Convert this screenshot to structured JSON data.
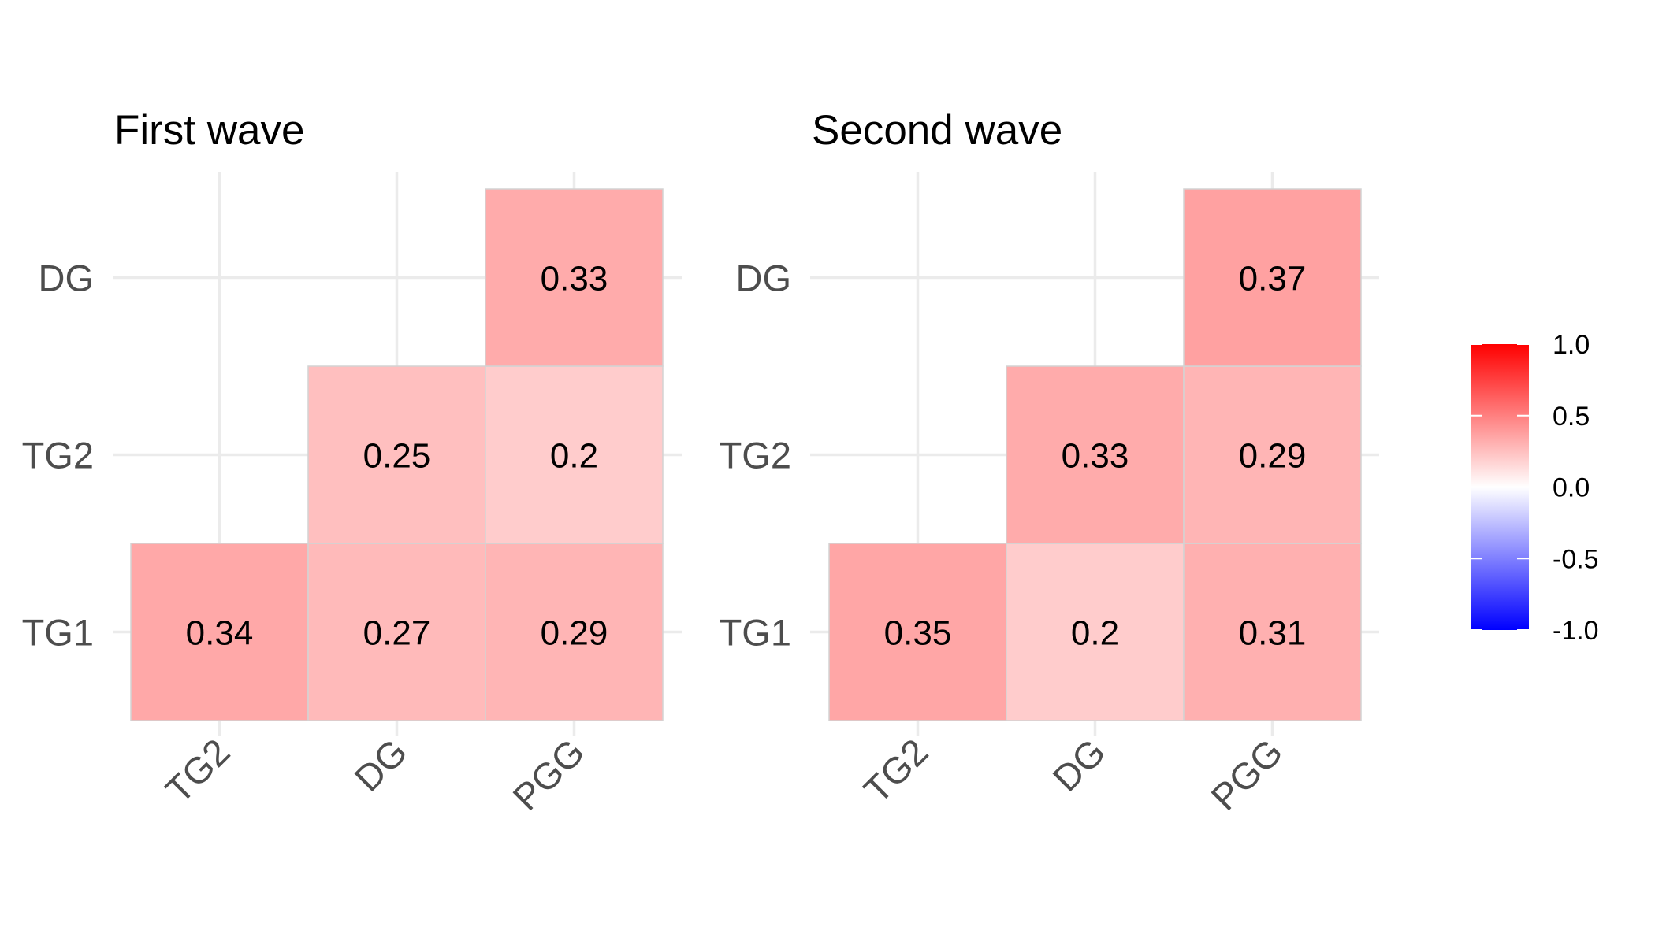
{
  "chart_data": [
    {
      "type": "heatmap",
      "title": "First wave",
      "x_categories": [
        "TG2",
        "DG",
        "PGG"
      ],
      "y_categories": [
        "TG1",
        "TG2",
        "DG"
      ],
      "cells": [
        {
          "x": "TG2",
          "y": "TG1",
          "value": 0.34,
          "label": "0.34"
        },
        {
          "x": "DG",
          "y": "TG1",
          "value": 0.27,
          "label": "0.27"
        },
        {
          "x": "PGG",
          "y": "TG1",
          "value": 0.29,
          "label": "0.29"
        },
        {
          "x": "DG",
          "y": "TG2",
          "value": 0.25,
          "label": "0.25"
        },
        {
          "x": "PGG",
          "y": "TG2",
          "value": 0.2,
          "label": "0.2"
        },
        {
          "x": "PGG",
          "y": "DG",
          "value": 0.33,
          "label": "0.33"
        }
      ],
      "grid": true
    },
    {
      "type": "heatmap",
      "title": "Second wave",
      "x_categories": [
        "TG2",
        "DG",
        "PGG"
      ],
      "y_categories": [
        "TG1",
        "TG2",
        "DG"
      ],
      "cells": [
        {
          "x": "TG2",
          "y": "TG1",
          "value": 0.35,
          "label": "0.35"
        },
        {
          "x": "DG",
          "y": "TG1",
          "value": 0.2,
          "label": "0.2"
        },
        {
          "x": "PGG",
          "y": "TG1",
          "value": 0.31,
          "label": "0.31"
        },
        {
          "x": "DG",
          "y": "TG2",
          "value": 0.33,
          "label": "0.33"
        },
        {
          "x": "PGG",
          "y": "TG2",
          "value": 0.29,
          "label": "0.29"
        },
        {
          "x": "PGG",
          "y": "DG",
          "value": 0.37,
          "label": "0.37"
        }
      ],
      "grid": true
    }
  ],
  "legend": {
    "position": "right",
    "range": [
      -1,
      1
    ],
    "ticks": [
      "1.0",
      "0.5",
      "0.0",
      "-0.5",
      "-1.0"
    ],
    "tick_values": [
      1,
      0.5,
      0,
      -0.5,
      -1
    ],
    "colors": {
      "low": "#0000ff",
      "mid": "#ffffff",
      "high": "#ff0000"
    }
  }
}
